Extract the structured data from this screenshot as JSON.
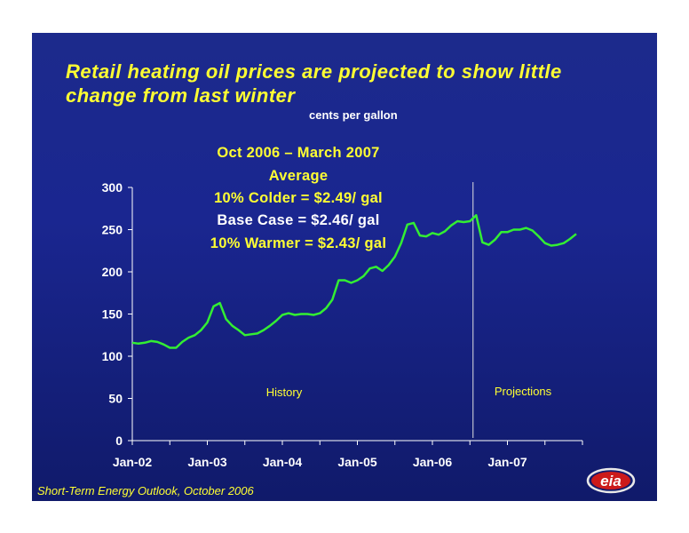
{
  "title": "Retail heating oil prices are projected to show little change from last winter",
  "unit_label": "cents per gallon",
  "annotation": {
    "line1": "Oct 2006 – March 2007",
    "line2": "Average",
    "line3": "10%  Colder = $2.49/ gal",
    "line4": "Base Case = $2.46/ gal",
    "line5": "10%  Warmer = $2.43/ gal"
  },
  "footer": "Short-Term Energy Outlook, October 2006",
  "logo_text": "eia",
  "colors": {
    "background": "#1a2690",
    "title": "#ffff33",
    "line": "#33ee33",
    "text": "#ffffff"
  },
  "chart_data": {
    "type": "line",
    "title": "Retail heating oil prices are projected to show little change from last winter",
    "ylabel": "cents per gallon",
    "ylim": [
      0,
      300
    ],
    "yticks": [
      0,
      50,
      100,
      150,
      200,
      250,
      300
    ],
    "xtick_labels": [
      "Jan-02",
      "Jan-03",
      "Jan-04",
      "Jan-05",
      "Jan-06",
      "Jan-07"
    ],
    "period_labels": [
      "History",
      "Projections"
    ],
    "projection_start": "Sep-06",
    "series": [
      {
        "values": [
          {
            "x": "Jan-02",
            "y": 116
          },
          {
            "x": "Feb-02",
            "y": 115
          },
          {
            "x": "Mar-02",
            "y": 116
          },
          {
            "x": "Apr-02",
            "y": 118
          },
          {
            "x": "May-02",
            "y": 117
          },
          {
            "x": "Jun-02",
            "y": 114
          },
          {
            "x": "Jul-02",
            "y": 110
          },
          {
            "x": "Aug-02",
            "y": 110
          },
          {
            "x": "Sep-02",
            "y": 117
          },
          {
            "x": "Oct-02",
            "y": 122
          },
          {
            "x": "Nov-02",
            "y": 125
          },
          {
            "x": "Dec-02",
            "y": 131
          },
          {
            "x": "Jan-03",
            "y": 140
          },
          {
            "x": "Feb-03",
            "y": 159
          },
          {
            "x": "Mar-03",
            "y": 163
          },
          {
            "x": "Apr-03",
            "y": 144
          },
          {
            "x": "May-03",
            "y": 136
          },
          {
            "x": "Jun-03",
            "y": 131
          },
          {
            "x": "Jul-03",
            "y": 125
          },
          {
            "x": "Aug-03",
            "y": 126
          },
          {
            "x": "Sep-03",
            "y": 127
          },
          {
            "x": "Oct-03",
            "y": 131
          },
          {
            "x": "Nov-03",
            "y": 136
          },
          {
            "x": "Dec-03",
            "y": 142
          },
          {
            "x": "Jan-04",
            "y": 149
          },
          {
            "x": "Feb-04",
            "y": 151
          },
          {
            "x": "Mar-04",
            "y": 149
          },
          {
            "x": "Apr-04",
            "y": 150
          },
          {
            "x": "May-04",
            "y": 150
          },
          {
            "x": "Jun-04",
            "y": 149
          },
          {
            "x": "Jul-04",
            "y": 151
          },
          {
            "x": "Aug-04",
            "y": 157
          },
          {
            "x": "Sep-04",
            "y": 167
          },
          {
            "x": "Oct-04",
            "y": 190
          },
          {
            "x": "Nov-04",
            "y": 190
          },
          {
            "x": "Dec-04",
            "y": 187
          },
          {
            "x": "Jan-05",
            "y": 190
          },
          {
            "x": "Feb-05",
            "y": 195
          },
          {
            "x": "Mar-05",
            "y": 204
          },
          {
            "x": "Apr-05",
            "y": 206
          },
          {
            "x": "May-05",
            "y": 201
          },
          {
            "x": "Jun-05",
            "y": 208
          },
          {
            "x": "Jul-05",
            "y": 218
          },
          {
            "x": "Aug-05",
            "y": 234
          },
          {
            "x": "Sep-05",
            "y": 256
          },
          {
            "x": "Oct-05",
            "y": 258
          },
          {
            "x": "Nov-05",
            "y": 243
          },
          {
            "x": "Dec-05",
            "y": 242
          },
          {
            "x": "Jan-06",
            "y": 246
          },
          {
            "x": "Feb-06",
            "y": 244
          },
          {
            "x": "Mar-06",
            "y": 248
          },
          {
            "x": "Apr-06",
            "y": 255
          },
          {
            "x": "May-06",
            "y": 260
          },
          {
            "x": "Jun-06",
            "y": 259
          },
          {
            "x": "Jul-06",
            "y": 260
          },
          {
            "x": "Aug-06",
            "y": 267
          },
          {
            "x": "Sep-06",
            "y": 235
          },
          {
            "x": "Oct-06",
            "y": 232
          },
          {
            "x": "Nov-06",
            "y": 238
          },
          {
            "x": "Dec-06",
            "y": 247
          },
          {
            "x": "Jan-07",
            "y": 247
          },
          {
            "x": "Feb-07",
            "y": 250
          },
          {
            "x": "Mar-07",
            "y": 250
          },
          {
            "x": "Apr-07",
            "y": 252
          },
          {
            "x": "May-07",
            "y": 249
          },
          {
            "x": "Jun-07",
            "y": 242
          },
          {
            "x": "Jul-07",
            "y": 234
          },
          {
            "x": "Aug-07",
            "y": 231
          },
          {
            "x": "Sep-07",
            "y": 232
          },
          {
            "x": "Oct-07",
            "y": 234
          },
          {
            "x": "Nov-07",
            "y": 239
          },
          {
            "x": "Dec-07",
            "y": 245
          }
        ]
      }
    ]
  }
}
